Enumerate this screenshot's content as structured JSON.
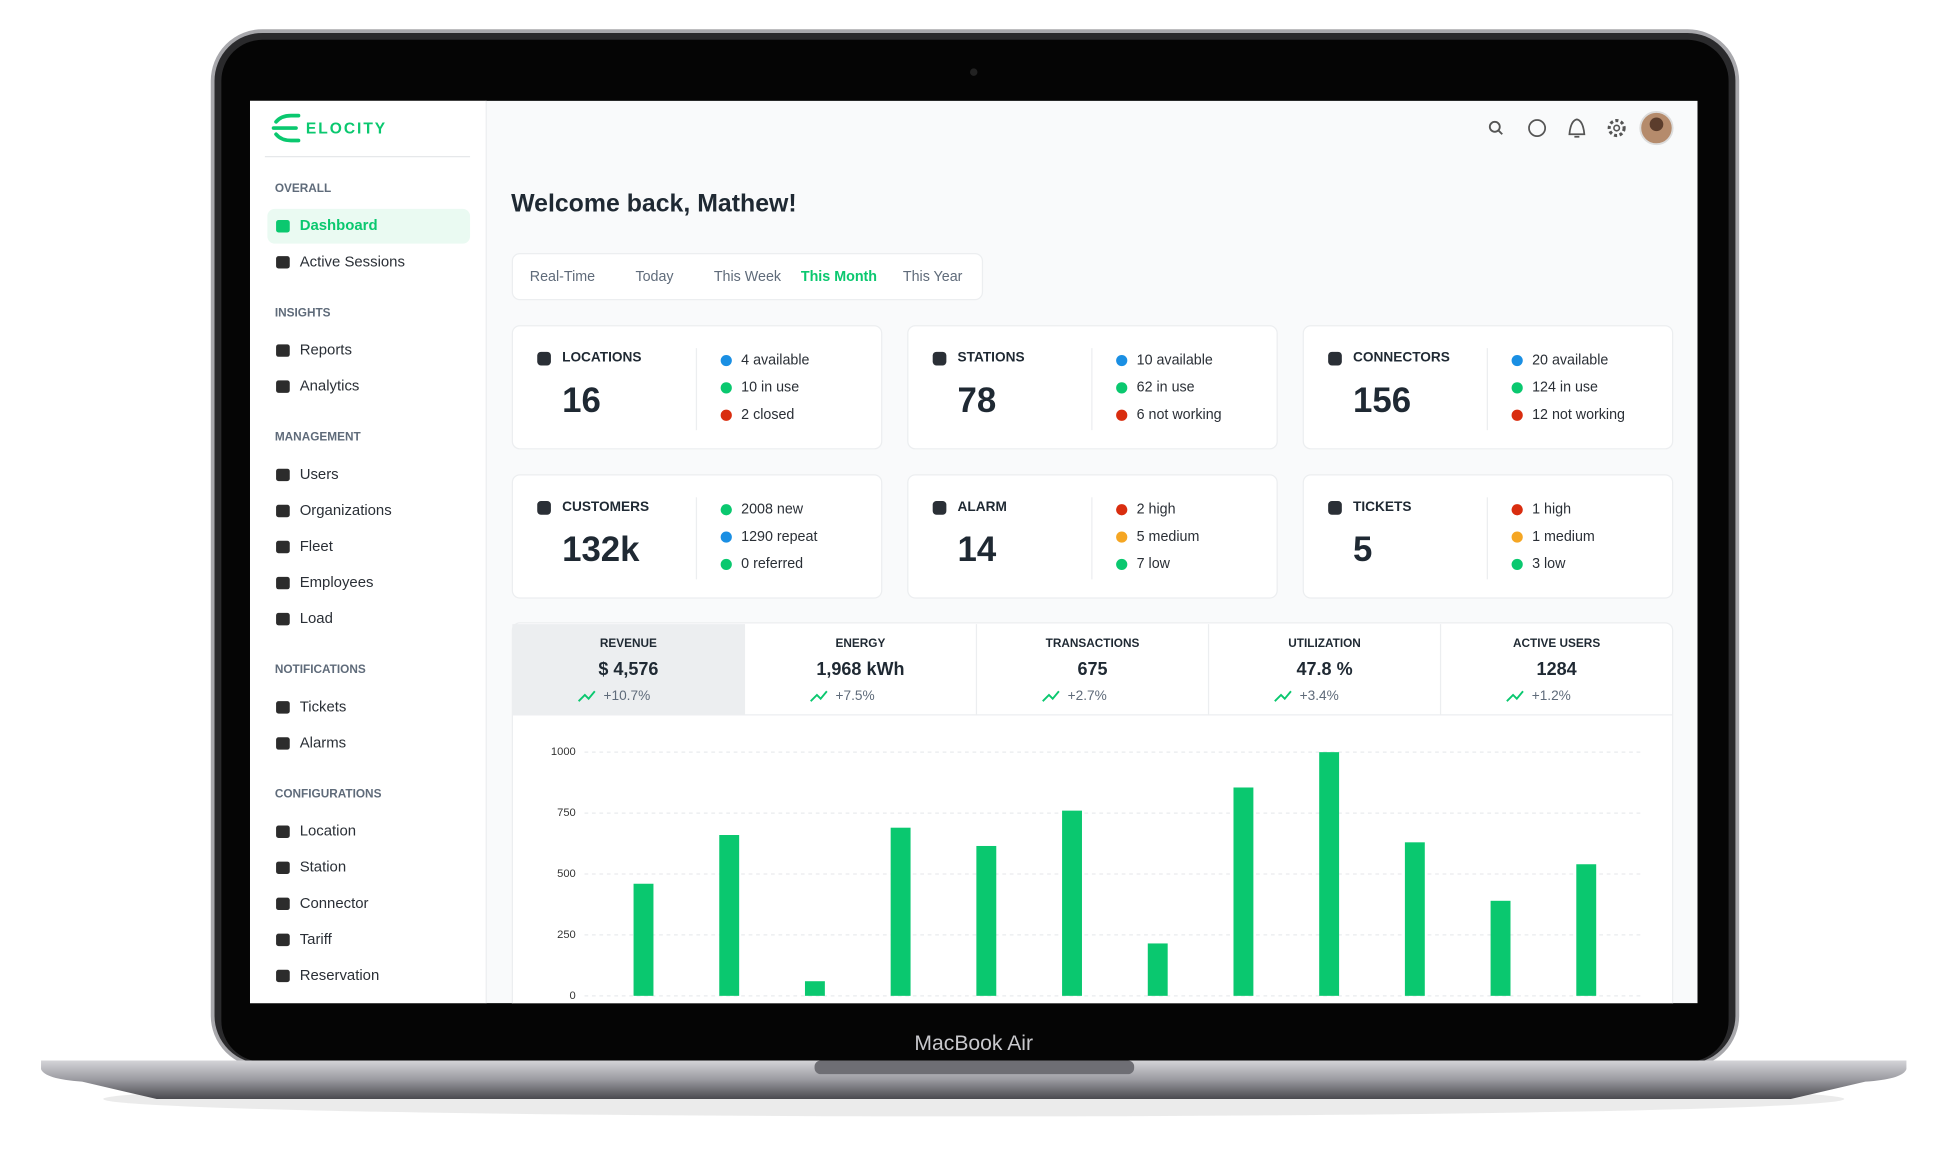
{
  "brand": "ELOCITY",
  "sidebar": [
    {
      "heading": "OVERALL",
      "items": [
        {
          "label": "Dashboard",
          "active": true
        },
        {
          "label": "Active Sessions"
        }
      ]
    },
    {
      "heading": "INSIGHTS",
      "items": [
        {
          "label": "Reports"
        },
        {
          "label": "Analytics"
        }
      ]
    },
    {
      "heading": "MANAGEMENT",
      "items": [
        {
          "label": "Users"
        },
        {
          "label": "Organizations"
        },
        {
          "label": "Fleet"
        },
        {
          "label": "Employees"
        },
        {
          "label": "Load"
        }
      ]
    },
    {
      "heading": "NOTIFICATIONS",
      "items": [
        {
          "label": "Tickets"
        },
        {
          "label": "Alarms"
        }
      ]
    },
    {
      "heading": "CONFIGURATIONS",
      "items": [
        {
          "label": "Location"
        },
        {
          "label": "Station"
        },
        {
          "label": "Connector"
        },
        {
          "label": "Tariff"
        },
        {
          "label": "Reservation"
        }
      ]
    }
  ],
  "greeting": "Welcome back, Mathew!",
  "tabs": [
    {
      "label": "Real-Time"
    },
    {
      "label": "Today"
    },
    {
      "label": "This Week"
    },
    {
      "label": "This Month",
      "active": true
    },
    {
      "label": "This Year"
    }
  ],
  "cards": [
    {
      "title": "LOCATIONS",
      "value": 16,
      "stats": [
        {
          "text": "4 available",
          "color": "#1a8fe3"
        },
        {
          "text": "10 in use",
          "color": "#0ac86f"
        },
        {
          "text": "2 closed",
          "color": "#d92d0f"
        }
      ]
    },
    {
      "title": "STATIONS",
      "value": 78,
      "stats": [
        {
          "text": "10 available",
          "color": "#1a8fe3"
        },
        {
          "text": "62 in use",
          "color": "#0ac86f"
        },
        {
          "text": "6 not working",
          "color": "#d92d0f"
        }
      ]
    },
    {
      "title": "CONNECTORS",
      "value": 156,
      "stats": [
        {
          "text": "20 available",
          "color": "#1a8fe3"
        },
        {
          "text": "124 in use",
          "color": "#0ac86f"
        },
        {
          "text": "12 not working",
          "color": "#d92d0f"
        }
      ]
    },
    {
      "title": "CUSTOMERS",
      "value": "132k",
      "stats": [
        {
          "text": "2008 new",
          "color": "#0ac86f"
        },
        {
          "text": "1290 repeat",
          "color": "#1a8fe3"
        },
        {
          "text": "0 referred",
          "color": "#0ac86f"
        }
      ]
    },
    {
      "title": "ALARM",
      "value": 14,
      "stats": [
        {
          "text": "2 high",
          "color": "#d92d0f"
        },
        {
          "text": "5 medium",
          "color": "#f5a623"
        },
        {
          "text": "7 low",
          "color": "#0ac86f"
        }
      ]
    },
    {
      "title": "TICKETS",
      "value": 5,
      "stats": [
        {
          "text": "1 high",
          "color": "#d92d0f"
        },
        {
          "text": "1 medium",
          "color": "#f5a623"
        },
        {
          "text": "3 low",
          "color": "#0ac86f"
        }
      ]
    }
  ],
  "kpis": [
    {
      "label": "REVENUE",
      "value": "$ 4,576",
      "change": "+10.7%",
      "active": true
    },
    {
      "label": "ENERGY",
      "value": "1,968 kWh",
      "change": "+7.5%"
    },
    {
      "label": "TRANSACTIONS",
      "value": "675",
      "change": "+2.7%"
    },
    {
      "label": "UTILIZATION",
      "value": "47.8 %",
      "change": "+3.4%"
    },
    {
      "label": "ACTIVE USERS",
      "value": "1284",
      "change": "+1.2%"
    }
  ],
  "chart_data": {
    "type": "bar",
    "values": [
      460,
      660,
      60,
      690,
      615,
      760,
      215,
      855,
      1000,
      630,
      390,
      540
    ],
    "color": "#0ac86f",
    "ylim": [
      0,
      1000
    ],
    "yticks": [
      0,
      250,
      500,
      750,
      1000
    ],
    "grid": true
  },
  "device_label": "MacBook Air"
}
